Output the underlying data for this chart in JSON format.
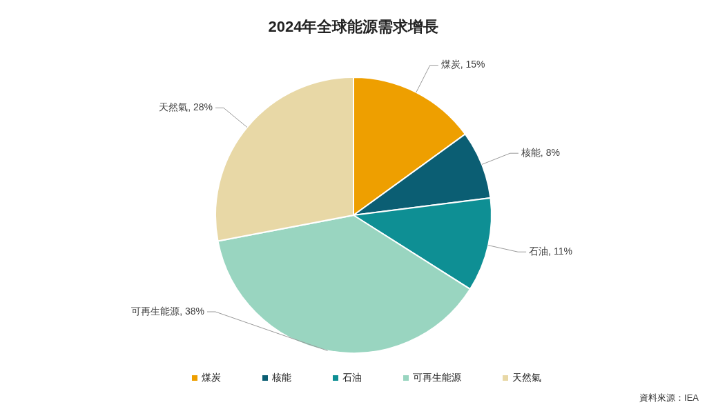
{
  "chart_data": {
    "type": "pie",
    "title": "2024年全球能源需求增長",
    "categories": [
      "煤炭",
      "核能",
      "石油",
      "可再生能源",
      "天然氣"
    ],
    "values": [
      15,
      8,
      11,
      38,
      28
    ],
    "colors": [
      "#ee9f00",
      "#0b5e73",
      "#0e8f94",
      "#99d5c0",
      "#e8d8a6"
    ],
    "value_labels": [
      ", 15%",
      ", 8%",
      ", 11%",
      ", 38%",
      ", 28%"
    ],
    "legend": "bottom",
    "annotations": [
      "資料來源：IEA"
    ]
  }
}
